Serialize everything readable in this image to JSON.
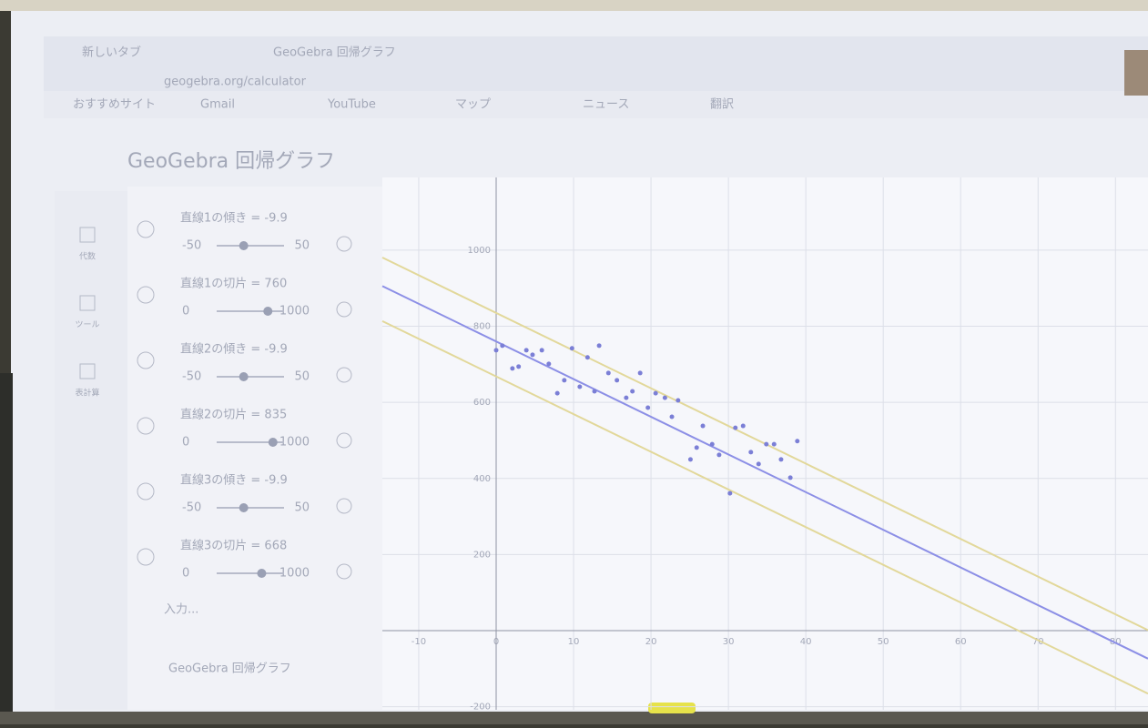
{
  "browser": {
    "tabs": [
      "新しいタブ",
      "GeoGebra 回帰グラフ"
    ],
    "url": "geogebra.org/calculator",
    "bookmarks": [
      "おすすめサイト",
      "Gmail",
      "YouTube",
      "マップ",
      "ニュース",
      "翻訳"
    ]
  },
  "app": {
    "title": "GeoGebra 回帰グラフ",
    "sidebar": [
      "代数",
      "ツール",
      "表計算"
    ],
    "input_placeholder": "入力...",
    "footer": "GeoGebra 回帰グラフ"
  },
  "sliders": [
    {
      "label": "直線1の傾き = -9.9",
      "min": -50,
      "max": 50,
      "value": -9.9
    },
    {
      "label": "直線1の切片 = 760",
      "min": 0,
      "max": 1000,
      "value": 760
    },
    {
      "label": "直線2の傾き = -9.9",
      "min": -50,
      "max": 50,
      "value": -9.9
    },
    {
      "label": "直線2の切片 = 835",
      "min": 0,
      "max": 1000,
      "value": 835
    },
    {
      "label": "直線3の傾き = -9.9",
      "min": -50,
      "max": 50,
      "value": -9.9
    },
    {
      "label": "直線3の切片 = 668",
      "min": 0,
      "max": 1000,
      "value": 668
    }
  ],
  "graph": {
    "xlim": [
      -14.7,
      84.2
    ],
    "ylim": [
      -208,
      1191
    ],
    "xticks": [
      -10,
      0,
      10,
      20,
      30,
      40,
      50,
      60,
      70,
      80
    ],
    "yticks": [
      -200,
      200,
      400,
      600,
      800,
      1000
    ],
    "grid": true,
    "line_colors": [
      "#8c8fe6",
      "#e2d89a",
      "#e2d89a"
    ],
    "point_color": "#7b7fd6",
    "points": {
      "x": [
        0,
        0.8,
        2.1,
        2.9,
        3.9,
        4.7,
        5.9,
        6.8,
        7.9,
        8.8,
        9.8,
        10.8,
        11.8,
        12.7,
        13.3,
        14.5,
        15.6,
        16.8,
        17.6,
        18.6,
        19.6,
        20.6,
        21.8,
        22.7,
        23.5,
        25.1,
        25.9,
        26.7,
        27.9,
        28.8,
        30.2,
        30.9,
        31.9,
        32.9,
        33.9,
        34.9,
        35.9,
        36.8,
        38,
        38.9
      ],
      "y": [
        737,
        749,
        689,
        694,
        737,
        725,
        737,
        701,
        624,
        658,
        742,
        641,
        718,
        629,
        749,
        677,
        658,
        612,
        629,
        677,
        586,
        624,
        612,
        562,
        605,
        450,
        481,
        538,
        490,
        462,
        361,
        533,
        538,
        469,
        438,
        490,
        490,
        450,
        402,
        498
      ]
    }
  }
}
